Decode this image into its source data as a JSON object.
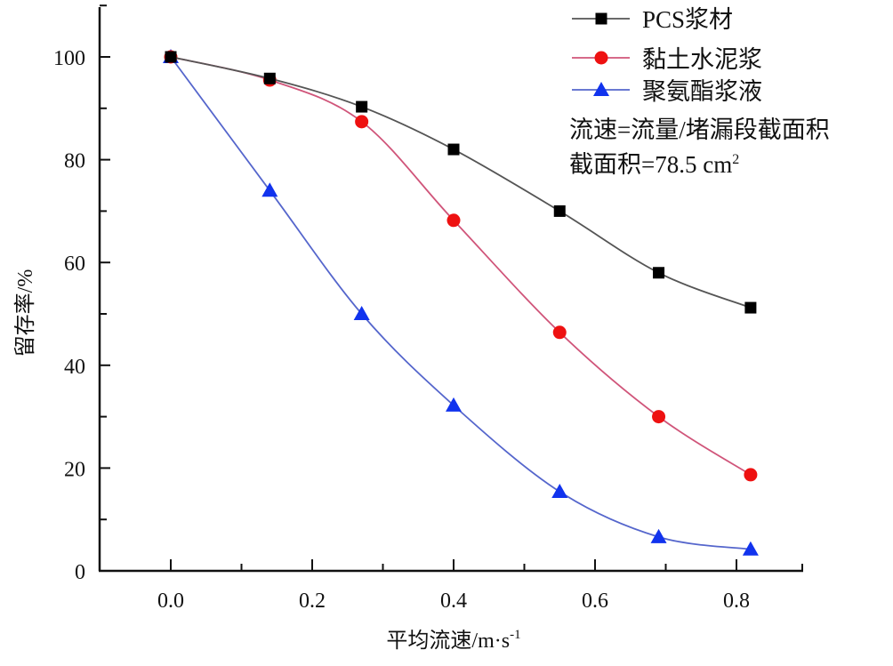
{
  "chart_data": {
    "type": "line",
    "title": "",
    "xlabel": "平均流速/m·s⁻¹",
    "ylabel": "留存率/%",
    "xlim": [
      -0.1,
      0.9
    ],
    "ylim": [
      0,
      110
    ],
    "x_ticks": [
      "0.0",
      "0.2",
      "0.4",
      "0.6",
      "0.8"
    ],
    "y_ticks": [
      "0",
      "20",
      "40",
      "60",
      "80",
      "100"
    ],
    "grid": false,
    "legend_position": "upper right",
    "x": [
      0.0,
      0.14,
      0.27,
      0.4,
      0.55,
      0.69,
      0.82
    ],
    "series": [
      {
        "name": "PCS浆材",
        "marker": "square",
        "color": "#000000",
        "line_color": "#555555",
        "values": [
          100,
          95.8,
          90.3,
          82.0,
          70.0,
          58.0,
          51.2
        ]
      },
      {
        "name": "黏土水泥浆",
        "marker": "circle",
        "color": "#ee1111",
        "line_color": "#d0557a",
        "values": [
          100,
          95.5,
          87.4,
          68.2,
          46.4,
          30.0,
          18.7
        ]
      },
      {
        "name": "聚氨酯浆液",
        "marker": "triangle",
        "color": "#1133ee",
        "line_color": "#5566cc",
        "values": [
          100,
          74.0,
          50.0,
          32.2,
          15.4,
          6.6,
          4.2
        ]
      }
    ],
    "annotations": [
      "流速=流量/堵漏段截面积",
      "截面积=78.5 cm²"
    ]
  },
  "legend": {
    "items": [
      "PCS浆材",
      "黏土水泥浆",
      "聚氨酯浆液"
    ]
  },
  "annotation": {
    "line1": "流速=流量/堵漏段截面积",
    "line2_prefix": "截面积=78.5 cm",
    "line2_sup": "2"
  },
  "axes": {
    "xlabel_main": "平均流速/m·s",
    "xlabel_sup": "-1",
    "ylabel": "留存率/%"
  }
}
